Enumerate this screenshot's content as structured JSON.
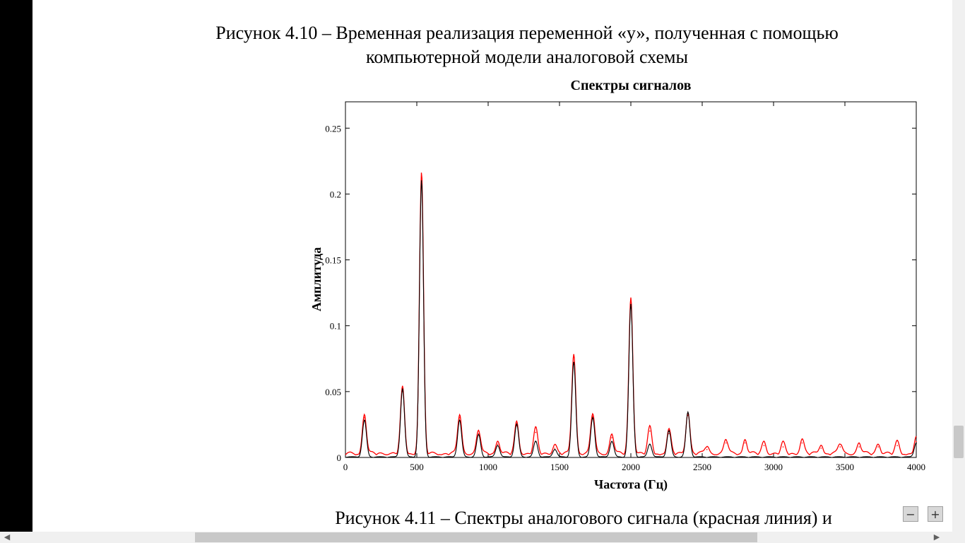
{
  "document": {
    "caption_top_line1": "Рисунок 4.10 – Временная реализация переменной «у», полученная с помощью",
    "caption_top_line2": "компьютерной модели аналоговой схемы",
    "caption_bottom": "Рисунок 4.11 – Спектры аналогового сигнала (красная линия) и"
  },
  "controls": {
    "zoom_out_label": "−",
    "zoom_in_label": "+",
    "scroll_left_icon": "chevron-left-icon",
    "scroll_right_icon": "chevron-right-icon"
  },
  "colors": {
    "analog": "#ff0000",
    "digital": "#000000"
  },
  "chart_data": {
    "type": "line",
    "title": "Спектры сигналов",
    "xlabel": "Частота (Гц)",
    "ylabel": "Амплитуда",
    "xlim": [
      0,
      4000
    ],
    "ylim": [
      0,
      0.27
    ],
    "xticks": [
      0,
      500,
      1000,
      1500,
      2000,
      2500,
      3000,
      3500,
      4000
    ],
    "xtick_labels": [
      "0",
      "500",
      "1000",
      "1500",
      "2000",
      "2500",
      "3000",
      "3500",
      "4000"
    ],
    "yticks": [
      0,
      0.05,
      0.1,
      0.15,
      0.2,
      0.25
    ],
    "ytick_labels": [
      "0",
      "0.05",
      "0.1",
      "0.15",
      "0.2",
      "0.25"
    ],
    "grid": false,
    "series": [
      {
        "color": "#ff0000",
        "peaks": [
          {
            "x": 133,
            "y": 0.03
          },
          {
            "x": 400,
            "y": 0.05
          },
          {
            "x": 533,
            "y": 0.213
          },
          {
            "x": 800,
            "y": 0.03
          },
          {
            "x": 933,
            "y": 0.018
          },
          {
            "x": 1067,
            "y": 0.01
          },
          {
            "x": 1200,
            "y": 0.024
          },
          {
            "x": 1333,
            "y": 0.019
          },
          {
            "x": 1467,
            "y": 0.007
          },
          {
            "x": 1600,
            "y": 0.076
          },
          {
            "x": 1733,
            "y": 0.031
          },
          {
            "x": 1867,
            "y": 0.015
          },
          {
            "x": 2000,
            "y": 0.119
          },
          {
            "x": 2133,
            "y": 0.02
          },
          {
            "x": 2267,
            "y": 0.018
          },
          {
            "x": 2400,
            "y": 0.032
          },
          {
            "x": 2533,
            "y": 0.006
          },
          {
            "x": 2667,
            "y": 0.011
          },
          {
            "x": 2800,
            "y": 0.011
          },
          {
            "x": 2933,
            "y": 0.009
          },
          {
            "x": 3067,
            "y": 0.008
          },
          {
            "x": 3200,
            "y": 0.011
          },
          {
            "x": 3333,
            "y": 0.007
          },
          {
            "x": 3467,
            "y": 0.008
          },
          {
            "x": 3600,
            "y": 0.008
          },
          {
            "x": 3733,
            "y": 0.008
          },
          {
            "x": 3867,
            "y": 0.009
          },
          {
            "x": 4000,
            "y": 0.012
          }
        ]
      },
      {
        "color": "#000000",
        "peaks": [
          {
            "x": 133,
            "y": 0.028
          },
          {
            "x": 400,
            "y": 0.052
          },
          {
            "x": 533,
            "y": 0.21
          },
          {
            "x": 800,
            "y": 0.028
          },
          {
            "x": 933,
            "y": 0.017
          },
          {
            "x": 1067,
            "y": 0.009
          },
          {
            "x": 1200,
            "y": 0.025
          },
          {
            "x": 1333,
            "y": 0.012
          },
          {
            "x": 1467,
            "y": 0.006
          },
          {
            "x": 1600,
            "y": 0.072
          },
          {
            "x": 1733,
            "y": 0.03
          },
          {
            "x": 1867,
            "y": 0.012
          },
          {
            "x": 2000,
            "y": 0.116
          },
          {
            "x": 2133,
            "y": 0.01
          },
          {
            "x": 2267,
            "y": 0.02
          },
          {
            "x": 2400,
            "y": 0.034
          },
          {
            "x": 4000,
            "y": 0.011
          }
        ]
      }
    ]
  }
}
